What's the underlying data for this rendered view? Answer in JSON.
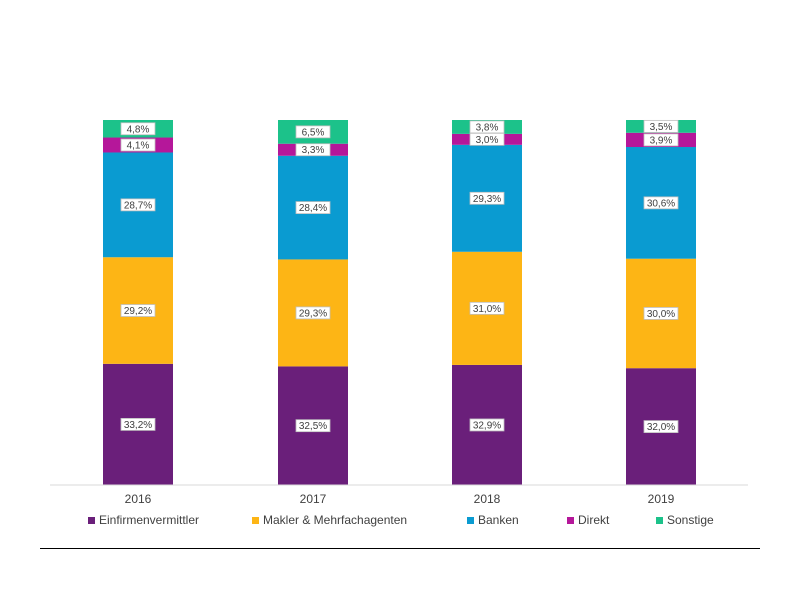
{
  "chart_data": {
    "type": "bar",
    "stacked": true,
    "categories": [
      "2016",
      "2017",
      "2018",
      "2019"
    ],
    "series": [
      {
        "name": "Einfirmenvermittler",
        "color": "#6a1f7a",
        "values": [
          33.2,
          32.5,
          32.9,
          32.0
        ],
        "labels": [
          "33,2%",
          "32,5%",
          "32,9%",
          "32,0%"
        ]
      },
      {
        "name": "Makler & Mehrfachagenten",
        "color": "#fdb515",
        "values": [
          29.2,
          29.3,
          31.0,
          30.0
        ],
        "labels": [
          "29,2%",
          "29,3%",
          "31,0%",
          "30,0%"
        ]
      },
      {
        "name": "Banken",
        "color": "#0a9bd1",
        "values": [
          28.7,
          28.4,
          29.3,
          30.6
        ],
        "labels": [
          "28,7%",
          "28,4%",
          "29,3%",
          "30,6%"
        ]
      },
      {
        "name": "Direkt",
        "color": "#b5179a",
        "values": [
          4.1,
          3.3,
          3.0,
          3.9
        ],
        "labels": [
          "4,1%",
          "3,3%",
          "3,0%",
          "3,9%"
        ]
      },
      {
        "name": "Sonstige",
        "color": "#1cc28a",
        "values": [
          4.8,
          6.5,
          3.8,
          3.5
        ],
        "labels": [
          "4,8%",
          "6,5%",
          "3,8%",
          "3,5%"
        ]
      }
    ],
    "ylim": [
      0,
      100
    ],
    "grid": false,
    "legend_position": "bottom"
  }
}
